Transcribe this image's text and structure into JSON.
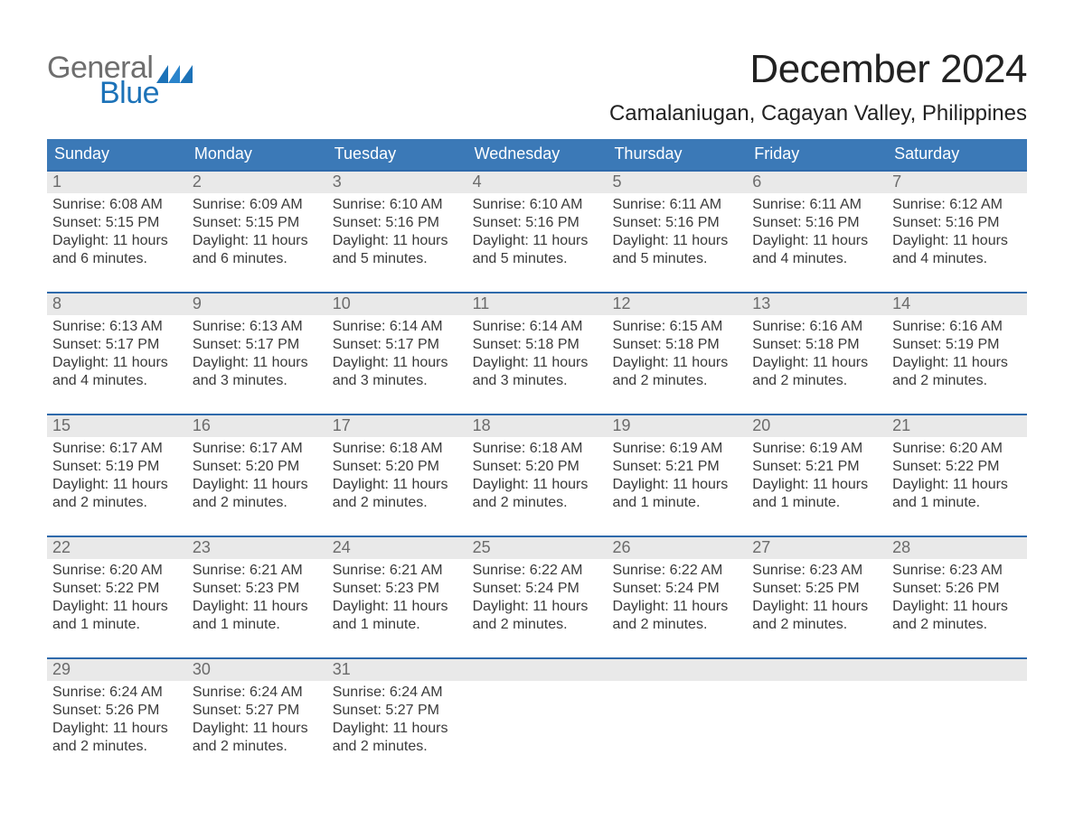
{
  "logo": {
    "word1": "General",
    "word2": "Blue"
  },
  "title": "December 2024",
  "location": "Camalaniugan, Cagayan Valley, Philippines",
  "colors": {
    "header_blue": "#3b79b7",
    "accent_rule": "#2f6aab",
    "daynum_bg": "#e9e9e9",
    "daynum_fg": "#6b6b6b",
    "body_fg": "#333333",
    "logo_gray": "#6e6e6e",
    "logo_blue": "#1c72b8",
    "background": "#ffffff"
  },
  "typography": {
    "title_fontsize_pt": 33,
    "location_fontsize_pt": 18,
    "dow_fontsize_pt": 14,
    "daynum_fontsize_pt": 14,
    "body_fontsize_pt": 12,
    "font_family": "Arial Narrow"
  },
  "daysOfWeek": [
    "Sunday",
    "Monday",
    "Tuesday",
    "Wednesday",
    "Thursday",
    "Friday",
    "Saturday"
  ],
  "weeks": [
    [
      {
        "n": "1",
        "sunrise": "Sunrise: 6:08 AM",
        "sunset": "Sunset: 5:15 PM",
        "daylight": "Daylight: 11 hours and 6 minutes."
      },
      {
        "n": "2",
        "sunrise": "Sunrise: 6:09 AM",
        "sunset": "Sunset: 5:15 PM",
        "daylight": "Daylight: 11 hours and 6 minutes."
      },
      {
        "n": "3",
        "sunrise": "Sunrise: 6:10 AM",
        "sunset": "Sunset: 5:16 PM",
        "daylight": "Daylight: 11 hours and 5 minutes."
      },
      {
        "n": "4",
        "sunrise": "Sunrise: 6:10 AM",
        "sunset": "Sunset: 5:16 PM",
        "daylight": "Daylight: 11 hours and 5 minutes."
      },
      {
        "n": "5",
        "sunrise": "Sunrise: 6:11 AM",
        "sunset": "Sunset: 5:16 PM",
        "daylight": "Daylight: 11 hours and 5 minutes."
      },
      {
        "n": "6",
        "sunrise": "Sunrise: 6:11 AM",
        "sunset": "Sunset: 5:16 PM",
        "daylight": "Daylight: 11 hours and 4 minutes."
      },
      {
        "n": "7",
        "sunrise": "Sunrise: 6:12 AM",
        "sunset": "Sunset: 5:16 PM",
        "daylight": "Daylight: 11 hours and 4 minutes."
      }
    ],
    [
      {
        "n": "8",
        "sunrise": "Sunrise: 6:13 AM",
        "sunset": "Sunset: 5:17 PM",
        "daylight": "Daylight: 11 hours and 4 minutes."
      },
      {
        "n": "9",
        "sunrise": "Sunrise: 6:13 AM",
        "sunset": "Sunset: 5:17 PM",
        "daylight": "Daylight: 11 hours and 3 minutes."
      },
      {
        "n": "10",
        "sunrise": "Sunrise: 6:14 AM",
        "sunset": "Sunset: 5:17 PM",
        "daylight": "Daylight: 11 hours and 3 minutes."
      },
      {
        "n": "11",
        "sunrise": "Sunrise: 6:14 AM",
        "sunset": "Sunset: 5:18 PM",
        "daylight": "Daylight: 11 hours and 3 minutes."
      },
      {
        "n": "12",
        "sunrise": "Sunrise: 6:15 AM",
        "sunset": "Sunset: 5:18 PM",
        "daylight": "Daylight: 11 hours and 2 minutes."
      },
      {
        "n": "13",
        "sunrise": "Sunrise: 6:16 AM",
        "sunset": "Sunset: 5:18 PM",
        "daylight": "Daylight: 11 hours and 2 minutes."
      },
      {
        "n": "14",
        "sunrise": "Sunrise: 6:16 AM",
        "sunset": "Sunset: 5:19 PM",
        "daylight": "Daylight: 11 hours and 2 minutes."
      }
    ],
    [
      {
        "n": "15",
        "sunrise": "Sunrise: 6:17 AM",
        "sunset": "Sunset: 5:19 PM",
        "daylight": "Daylight: 11 hours and 2 minutes."
      },
      {
        "n": "16",
        "sunrise": "Sunrise: 6:17 AM",
        "sunset": "Sunset: 5:20 PM",
        "daylight": "Daylight: 11 hours and 2 minutes."
      },
      {
        "n": "17",
        "sunrise": "Sunrise: 6:18 AM",
        "sunset": "Sunset: 5:20 PM",
        "daylight": "Daylight: 11 hours and 2 minutes."
      },
      {
        "n": "18",
        "sunrise": "Sunrise: 6:18 AM",
        "sunset": "Sunset: 5:20 PM",
        "daylight": "Daylight: 11 hours and 2 minutes."
      },
      {
        "n": "19",
        "sunrise": "Sunrise: 6:19 AM",
        "sunset": "Sunset: 5:21 PM",
        "daylight": "Daylight: 11 hours and 1 minute."
      },
      {
        "n": "20",
        "sunrise": "Sunrise: 6:19 AM",
        "sunset": "Sunset: 5:21 PM",
        "daylight": "Daylight: 11 hours and 1 minute."
      },
      {
        "n": "21",
        "sunrise": "Sunrise: 6:20 AM",
        "sunset": "Sunset: 5:22 PM",
        "daylight": "Daylight: 11 hours and 1 minute."
      }
    ],
    [
      {
        "n": "22",
        "sunrise": "Sunrise: 6:20 AM",
        "sunset": "Sunset: 5:22 PM",
        "daylight": "Daylight: 11 hours and 1 minute."
      },
      {
        "n": "23",
        "sunrise": "Sunrise: 6:21 AM",
        "sunset": "Sunset: 5:23 PM",
        "daylight": "Daylight: 11 hours and 1 minute."
      },
      {
        "n": "24",
        "sunrise": "Sunrise: 6:21 AM",
        "sunset": "Sunset: 5:23 PM",
        "daylight": "Daylight: 11 hours and 1 minute."
      },
      {
        "n": "25",
        "sunrise": "Sunrise: 6:22 AM",
        "sunset": "Sunset: 5:24 PM",
        "daylight": "Daylight: 11 hours and 2 minutes."
      },
      {
        "n": "26",
        "sunrise": "Sunrise: 6:22 AM",
        "sunset": "Sunset: 5:24 PM",
        "daylight": "Daylight: 11 hours and 2 minutes."
      },
      {
        "n": "27",
        "sunrise": "Sunrise: 6:23 AM",
        "sunset": "Sunset: 5:25 PM",
        "daylight": "Daylight: 11 hours and 2 minutes."
      },
      {
        "n": "28",
        "sunrise": "Sunrise: 6:23 AM",
        "sunset": "Sunset: 5:26 PM",
        "daylight": "Daylight: 11 hours and 2 minutes."
      }
    ],
    [
      {
        "n": "29",
        "sunrise": "Sunrise: 6:24 AM",
        "sunset": "Sunset: 5:26 PM",
        "daylight": "Daylight: 11 hours and 2 minutes."
      },
      {
        "n": "30",
        "sunrise": "Sunrise: 6:24 AM",
        "sunset": "Sunset: 5:27 PM",
        "daylight": "Daylight: 11 hours and 2 minutes."
      },
      {
        "n": "31",
        "sunrise": "Sunrise: 6:24 AM",
        "sunset": "Sunset: 5:27 PM",
        "daylight": "Daylight: 11 hours and 2 minutes."
      },
      {
        "n": "",
        "sunrise": "",
        "sunset": "",
        "daylight": ""
      },
      {
        "n": "",
        "sunrise": "",
        "sunset": "",
        "daylight": ""
      },
      {
        "n": "",
        "sunrise": "",
        "sunset": "",
        "daylight": ""
      },
      {
        "n": "",
        "sunrise": "",
        "sunset": "",
        "daylight": ""
      }
    ]
  ]
}
